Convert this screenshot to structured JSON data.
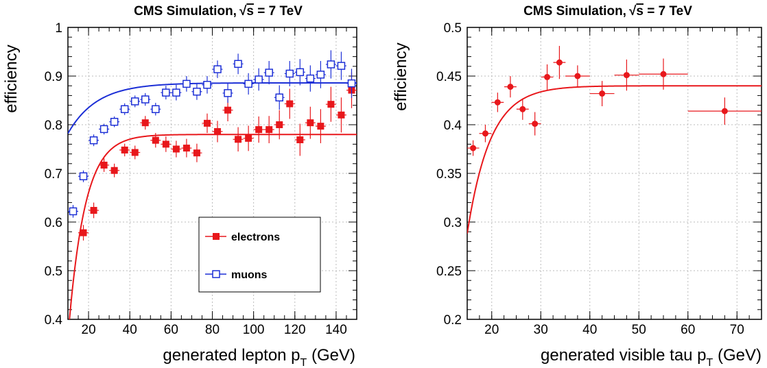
{
  "colors": {
    "electrons": "#e8171b",
    "muons": "#1c2fd6",
    "tau": "#e8171b",
    "axes": "#000000",
    "grid": "#bbbbbb"
  },
  "chart_data": [
    {
      "type": "scatter",
      "title": "CMS Simulation,",
      "title_math": "√s = 7 TeV",
      "sqrt_symbol": "√",
      "sqrt_arg": "s",
      "title_suffix": " = 7 TeV",
      "xlabel": "generated lepton p",
      "xlabel_sub": "T",
      "xlabel_suffix": " (GeV)",
      "ylabel": "efficiency",
      "xlim": [
        10,
        150
      ],
      "ylim": [
        0.4,
        1.0
      ],
      "grid": true,
      "xticks": [
        20,
        40,
        60,
        80,
        100,
        120,
        140
      ],
      "xtick_labels": [
        "20",
        "40",
        "60",
        "80",
        "100",
        "120",
        "140"
      ],
      "yticks": [
        0.4,
        0.5,
        0.6,
        0.7,
        0.8,
        0.9,
        1.0
      ],
      "ytick_labels": [
        "0.4",
        "0.5",
        "0.6",
        "0.7",
        "0.8",
        "0.9",
        "1"
      ],
      "legend_position": "center-right",
      "series": [
        {
          "name": "electrons",
          "marker": "filled-square",
          "x": [
            17.5,
            22.5,
            27.5,
            32.5,
            37.5,
            42.5,
            47.5,
            52.5,
            57.5,
            62.5,
            67.5,
            72.5,
            77.5,
            82.5,
            87.5,
            92.5,
            97.5,
            102.5,
            107.5,
            112.5,
            117.5,
            122.5,
            127.5,
            132.5,
            137.5,
            142.5,
            147.5
          ],
          "y": [
            0.578,
            0.624,
            0.717,
            0.706,
            0.748,
            0.743,
            0.804,
            0.768,
            0.76,
            0.75,
            0.752,
            0.742,
            0.803,
            0.786,
            0.83,
            0.77,
            0.772,
            0.79,
            0.79,
            0.8,
            0.843,
            0.769,
            0.804,
            0.797,
            0.842,
            0.82,
            0.871
          ],
          "yerr": [
            0.016,
            0.016,
            0.014,
            0.014,
            0.013,
            0.014,
            0.014,
            0.015,
            0.016,
            0.017,
            0.019,
            0.019,
            0.02,
            0.022,
            0.023,
            0.025,
            0.026,
            0.027,
            0.028,
            0.03,
            0.031,
            0.033,
            0.033,
            0.035,
            0.036,
            0.036,
            0.037
          ],
          "xerr": 2.5,
          "fit_plateau": 0.78,
          "fit_x0": 5.0,
          "fit_tau": 8.0
        },
        {
          "name": "muons",
          "marker": "open-square",
          "x": [
            12.5,
            17.5,
            22.5,
            27.5,
            32.5,
            37.5,
            42.5,
            47.5,
            52.5,
            57.5,
            62.5,
            67.5,
            72.5,
            77.5,
            82.5,
            87.5,
            92.5,
            97.5,
            102.5,
            107.5,
            112.5,
            117.5,
            122.5,
            127.5,
            132.5,
            137.5,
            142.5,
            147.5
          ],
          "y": [
            0.622,
            0.694,
            0.768,
            0.791,
            0.806,
            0.832,
            0.848,
            0.852,
            0.832,
            0.866,
            0.866,
            0.884,
            0.868,
            0.882,
            0.914,
            0.865,
            0.925,
            0.884,
            0.893,
            0.907,
            0.856,
            0.905,
            0.908,
            0.895,
            0.903,
            0.924,
            0.921,
            0.885
          ],
          "yerr": [
            0.013,
            0.012,
            0.012,
            0.011,
            0.011,
            0.012,
            0.012,
            0.013,
            0.013,
            0.014,
            0.016,
            0.016,
            0.017,
            0.018,
            0.018,
            0.02,
            0.021,
            0.022,
            0.023,
            0.024,
            0.025,
            0.026,
            0.027,
            0.027,
            0.028,
            0.029,
            0.029,
            0.03
          ],
          "xerr": 2.5,
          "fit_plateau": 0.886,
          "fit_x0": -20.0,
          "fit_tau": 14.0
        }
      ]
    },
    {
      "type": "scatter",
      "title": "CMS Simulation,",
      "title_math": "√s = 7 TeV",
      "sqrt_symbol": "√",
      "sqrt_arg": "s",
      "title_suffix": " = 7 TeV",
      "xlabel": "generated visible tau p",
      "xlabel_sub": "T",
      "xlabel_suffix": " (GeV)",
      "ylabel": "efficiency",
      "xlim": [
        15,
        75
      ],
      "ylim": [
        0.2,
        0.5
      ],
      "grid": true,
      "xticks": [
        20,
        30,
        40,
        50,
        60,
        70
      ],
      "xtick_labels": [
        "20",
        "30",
        "40",
        "50",
        "60",
        "70"
      ],
      "yticks": [
        0.2,
        0.25,
        0.3,
        0.35,
        0.4,
        0.45,
        0.5
      ],
      "ytick_labels": [
        "0.2",
        "0.25",
        "0.3",
        "0.35",
        "0.4",
        "0.45",
        "0.5"
      ],
      "series": [
        {
          "marker": "filled-circle",
          "x": [
            16.2,
            18.7,
            21.2,
            23.8,
            26.3,
            28.8,
            31.3,
            33.8,
            37.5,
            42.5,
            47.5,
            55.0,
            67.5
          ],
          "y": [
            0.376,
            0.391,
            0.423,
            0.439,
            0.416,
            0.401,
            0.449,
            0.464,
            0.45,
            0.432,
            0.451,
            0.452,
            0.414
          ],
          "yerr": [
            0.008,
            0.009,
            0.01,
            0.011,
            0.011,
            0.012,
            0.013,
            0.017,
            0.011,
            0.013,
            0.016,
            0.016,
            0.014
          ],
          "xerr": [
            1.25,
            1.25,
            1.25,
            1.25,
            1.25,
            1.25,
            1.25,
            1.25,
            2.5,
            2.5,
            2.5,
            5.0,
            7.5
          ],
          "fit_plateau": 0.44,
          "fit_x0": 10.0,
          "fit_tau": 4.7
        }
      ]
    }
  ]
}
